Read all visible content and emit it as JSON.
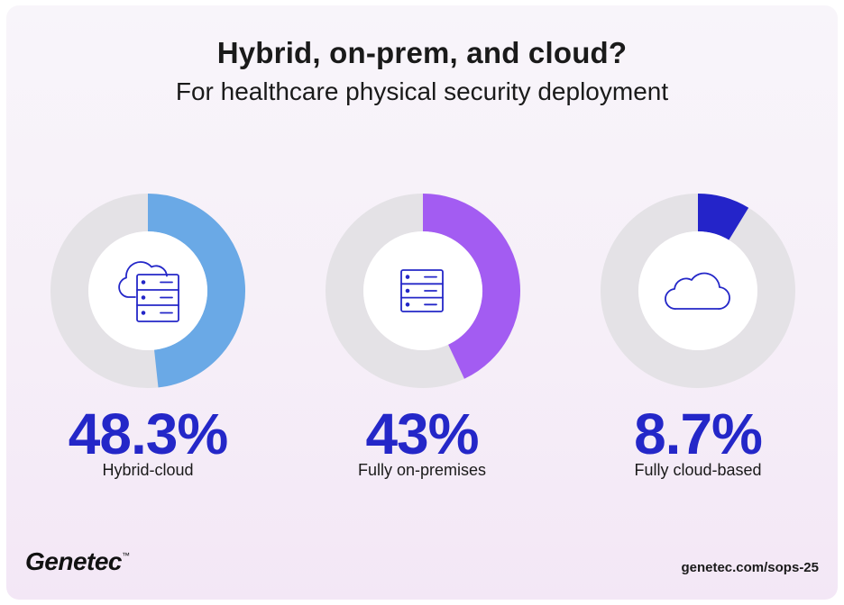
{
  "header": {
    "title": "Hybrid, on-prem, and cloud?",
    "subtitle": "For healthcare physical security deployment"
  },
  "chart_data": {
    "type": "pie",
    "title": "Hybrid, on-prem, and cloud?",
    "subtitle": "For healthcare physical security deployment",
    "slices": [
      {
        "label": "Hybrid-cloud",
        "value": 48.3,
        "display": "48.3%",
        "color": "#6aa9e6",
        "icon": "hybrid-cloud-server-icon"
      },
      {
        "label": "Fully on-premises",
        "value": 43,
        "display": "43%",
        "color": "#a35cf2",
        "icon": "server-rack-icon"
      },
      {
        "label": "Fully cloud-based",
        "value": 8.7,
        "display": "8.7%",
        "color": "#2424c9",
        "icon": "cloud-icon"
      }
    ],
    "track_color": "#e4e2e6",
    "icon_color": "#2427c8"
  },
  "footer": {
    "logo": "Genetec",
    "logo_mark": "™",
    "url": "genetec.com/sops-25"
  }
}
